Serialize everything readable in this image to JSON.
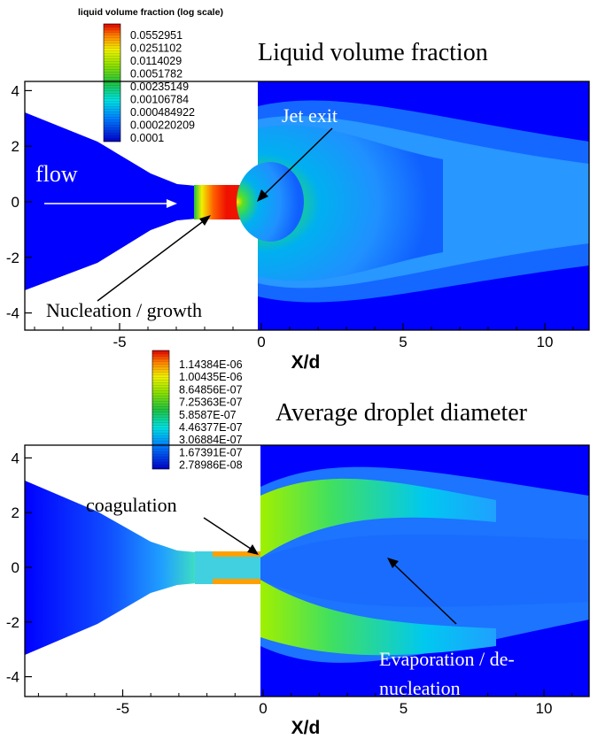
{
  "chart_data": [
    {
      "type": "heatmap",
      "title": "Liquid volume fraction",
      "xlabel": "X/d",
      "ylabel": "",
      "xlim": [
        -8.5,
        11.5
      ],
      "ylim": [
        -4.6,
        4.3
      ],
      "xticks": [
        "-5",
        "0",
        "5",
        "10"
      ],
      "yticks": [
        "4",
        "2",
        "0",
        "-2",
        "-4"
      ],
      "colorbar": {
        "title": "liquid volume fraction (log scale)",
        "scale": "log",
        "labels": [
          "0.0552951",
          "0.0251102",
          "0.0114029",
          "0.0051782",
          "0.00235149",
          "0.00106784",
          "0.000484922",
          "0.000220209",
          "0.0001"
        ]
      },
      "annotations": [
        "flow",
        "Jet exit",
        "Nucleation / growth"
      ]
    },
    {
      "type": "heatmap",
      "title": "Average droplet diameter",
      "xlabel": "X/d",
      "ylabel": "",
      "xlim": [
        -8.5,
        11.5
      ],
      "ylim": [
        -4.6,
        4.5
      ],
      "xticks": [
        "-5",
        "0",
        "5",
        "10"
      ],
      "yticks": [
        "4",
        "2",
        "0",
        "-2",
        "-4"
      ],
      "colorbar": {
        "title": "",
        "scale": "linear",
        "labels": [
          "1.14384E-06",
          "1.00435E-06",
          "8.64856E-07",
          "7.25363E-07",
          "5.8587E-07",
          "4.46377E-07",
          "3.06884E-07",
          "1.67391E-07",
          "2.78986E-08"
        ]
      },
      "annotations": [
        "coagulation",
        "Evaporation / de-",
        "nucleation"
      ]
    }
  ],
  "colors": {
    "low": "#0000ff",
    "mid": "#00c8ff",
    "green": "#3cdc3c",
    "high": "#ff2000"
  }
}
